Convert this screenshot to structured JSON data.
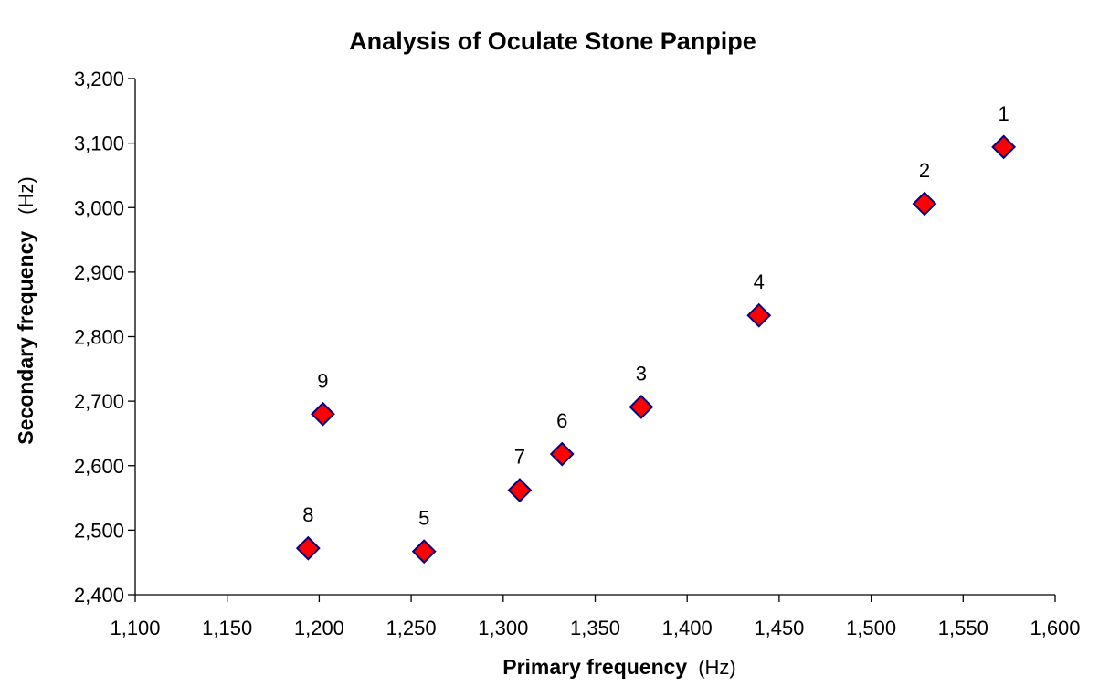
{
  "chart_data": {
    "type": "scatter",
    "title": "Analysis of Oculate Stone Panpipe",
    "xlabel": "Primary frequency",
    "xlabel_unit": "(Hz)",
    "ylabel": "Secondary frequency",
    "ylabel_unit": "(Hz)",
    "xlim": [
      1100,
      1600
    ],
    "ylim": [
      2400,
      3200
    ],
    "xticks": [
      1100,
      1150,
      1200,
      1250,
      1300,
      1350,
      1400,
      1450,
      1500,
      1550,
      1600
    ],
    "yticks": [
      2400,
      2500,
      2600,
      2700,
      2800,
      2900,
      3000,
      3100,
      3200
    ],
    "xtick_labels": [
      "1,100",
      "1,150",
      "1,200",
      "1,250",
      "1,300",
      "1,350",
      "1,400",
      "1,450",
      "1,500",
      "1,550",
      "1,600"
    ],
    "ytick_labels": [
      "2,400",
      "2,500",
      "2,600",
      "2,700",
      "2,800",
      "2,900",
      "3,000",
      "3,100",
      "3,200"
    ],
    "grid": false,
    "marker": "diamond",
    "marker_fill": "#ff0000",
    "marker_stroke": "#000080",
    "points": [
      {
        "label": "1",
        "x": 1572,
        "y": 3094
      },
      {
        "label": "2",
        "x": 1529,
        "y": 3006
      },
      {
        "label": "3",
        "x": 1375,
        "y": 2691
      },
      {
        "label": "4",
        "x": 1439,
        "y": 2833
      },
      {
        "label": "5",
        "x": 1257,
        "y": 2467
      },
      {
        "label": "6",
        "x": 1332,
        "y": 2618
      },
      {
        "label": "7",
        "x": 1309,
        "y": 2562
      },
      {
        "label": "8",
        "x": 1194,
        "y": 2472
      },
      {
        "label": "9",
        "x": 1202,
        "y": 2680
      }
    ]
  }
}
